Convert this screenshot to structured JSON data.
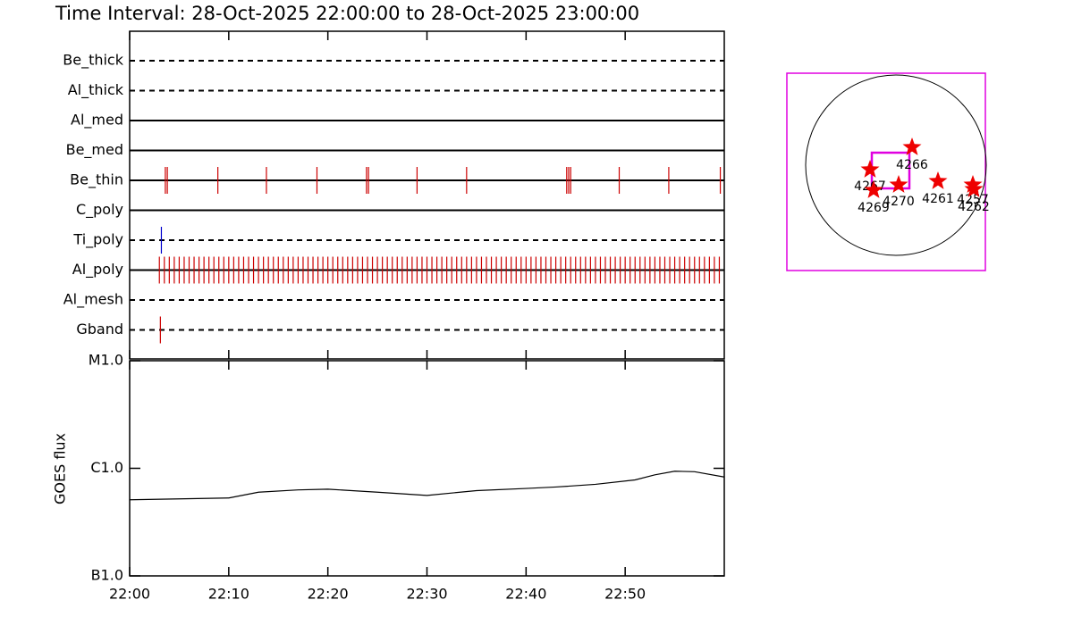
{
  "title": "Time Interval: 28-Oct-2025 22:00:00 to 28-Oct-2025 23:00:00",
  "filter_panel": {
    "xlim": [
      0,
      60
    ],
    "filters": [
      {
        "name": "Be_thick",
        "line": "dashed",
        "color": "#cc0000",
        "events": []
      },
      {
        "name": "Al_thick",
        "line": "dashed",
        "color": "#cc0000",
        "events": []
      },
      {
        "name": "Al_med",
        "line": "solid",
        "color": "#cc0000",
        "events": []
      },
      {
        "name": "Be_med",
        "line": "solid",
        "color": "#cc0000",
        "events": []
      },
      {
        "name": "Be_thin",
        "line": "solid",
        "color": "#cc0000",
        "events": [
          3.6,
          3.8,
          8.9,
          13.8,
          18.9,
          23.9,
          24.1,
          29.0,
          34.0,
          44.1,
          44.3,
          44.5,
          49.4,
          54.4,
          59.6
        ]
      },
      {
        "name": "C_poly",
        "line": "solid",
        "color": "#cc0000",
        "events": []
      },
      {
        "name": "Ti_poly",
        "line": "dashed",
        "color": "#0000cc",
        "events": [
          3.2
        ]
      },
      {
        "name": "Al_poly",
        "line": "solid",
        "color": "#cc0000",
        "events": [
          3,
          3.5,
          4,
          4.5,
          5,
          5.5,
          6,
          6.5,
          7,
          7.5,
          8,
          8.5,
          9,
          9.5,
          10,
          10.5,
          11,
          11.5,
          12,
          12.5,
          13,
          13.5,
          14,
          14.5,
          15,
          15.5,
          16,
          16.5,
          17,
          17.5,
          18,
          18.5,
          19,
          19.5,
          20,
          20.5,
          21,
          21.5,
          22,
          22.5,
          23,
          23.5,
          24,
          24.5,
          25,
          25.5,
          26,
          26.5,
          27,
          27.5,
          28,
          28.5,
          29,
          29.5,
          30,
          30.5,
          31,
          31.5,
          32,
          32.5,
          33,
          33.5,
          34,
          34.5,
          35,
          35.5,
          36,
          36.5,
          37,
          37.5,
          38,
          38.5,
          39,
          39.5,
          40,
          40.5,
          41,
          41.5,
          42,
          42.5,
          43,
          43.5,
          44,
          44.5,
          45,
          45.5,
          46,
          46.5,
          47,
          47.5,
          48,
          48.5,
          49,
          49.5,
          50,
          50.5,
          51,
          51.5,
          52,
          52.5,
          53,
          53.5,
          54,
          54.5,
          55,
          55.5,
          56,
          56.5,
          57,
          57.5,
          58,
          58.5,
          59,
          59.5
        ]
      },
      {
        "name": "Al_mesh",
        "line": "dashed",
        "color": "#cc0000",
        "events": []
      },
      {
        "name": "Gband",
        "line": "dashed",
        "color": "#cc0000",
        "events": [
          3.1
        ]
      }
    ]
  },
  "chart_data": {
    "type": "line",
    "ylabel": "GOES flux",
    "color": "#000000",
    "yscale": "log",
    "x": [
      0,
      5,
      10,
      13,
      17,
      20,
      25,
      30,
      35,
      40,
      43,
      47,
      51,
      53,
      55,
      57,
      60
    ],
    "values": [
      5.1e-07,
      5.2e-07,
      5.3e-07,
      6e-07,
      6.3e-07,
      6.4e-07,
      6e-07,
      5.6e-07,
      6.2e-07,
      6.5e-07,
      6.7e-07,
      7.1e-07,
      7.8e-07,
      8.7e-07,
      9.4e-07,
      9.3e-07,
      8.3e-07
    ],
    "xlim": [
      0,
      60
    ],
    "ylim": [
      1e-07,
      1e-05
    ],
    "xticks": [
      {
        "value": 0,
        "label": "22:00"
      },
      {
        "value": 10,
        "label": "22:10"
      },
      {
        "value": 20,
        "label": "22:20"
      },
      {
        "value": 30,
        "label": "22:30"
      },
      {
        "value": 40,
        "label": "22:40"
      },
      {
        "value": 50,
        "label": "22:50"
      }
    ],
    "yticks": [
      {
        "value": 1e-07,
        "label": "B1.0"
      },
      {
        "value": 1e-06,
        "label": "C1.0"
      },
      {
        "value": 1e-05,
        "label": "M1.0"
      }
    ]
  },
  "sun_map": {
    "regions": [
      {
        "label": "4266"
      },
      {
        "label": "4267"
      },
      {
        "label": "4269"
      },
      {
        "label": "4270"
      },
      {
        "label": "4261"
      },
      {
        "label": "4257"
      },
      {
        "label": "4262"
      }
    ]
  }
}
